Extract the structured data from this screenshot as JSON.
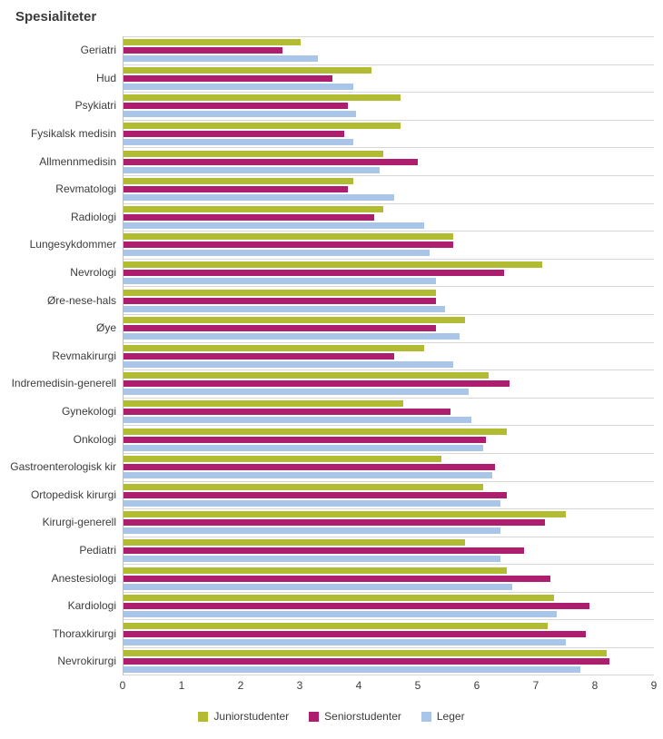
{
  "chart_data": {
    "type": "bar",
    "orientation": "horizontal",
    "title": "Spesialiteter",
    "xlabel": "",
    "ylabel": "",
    "xlim": [
      0,
      9
    ],
    "x_ticks": [
      0,
      1,
      2,
      3,
      4,
      5,
      6,
      7,
      8,
      9
    ],
    "grid": "horizontal-row-separators",
    "legend_position": "bottom",
    "categories": [
      "Geriatri",
      "Hud",
      "Psykiatri",
      "Fysikalsk medisin",
      "Allmennmedisin",
      "Revmatologi",
      "Radiologi",
      "Lungesykdommer",
      "Nevrologi",
      "Øre-nese-hals",
      "Øye",
      "Revmakirurgi",
      "Indremedisin-generell",
      "Gynekologi",
      "Onkologi",
      "Gastroenterologisk kir",
      "Ortopedisk kirurgi",
      "Kirurgi-generell",
      "Pediatri",
      "Anestesiologi",
      "Kardiologi",
      "Thoraxkirurgi",
      "Nevrokirurgi"
    ],
    "series": [
      {
        "name": "Juniorstudenter",
        "color": "#b2bc33",
        "values": [
          3.0,
          4.2,
          4.7,
          4.7,
          4.4,
          3.9,
          4.4,
          5.6,
          7.1,
          5.3,
          5.8,
          5.1,
          6.2,
          4.75,
          6.5,
          5.4,
          6.1,
          7.5,
          5.8,
          6.5,
          7.3,
          7.2,
          8.2
        ]
      },
      {
        "name": "Seniorstudenter",
        "color": "#ad1e6f",
        "values": [
          2.7,
          3.55,
          3.8,
          3.75,
          5.0,
          3.8,
          4.25,
          5.6,
          6.45,
          5.3,
          5.3,
          4.6,
          6.55,
          5.55,
          6.15,
          6.3,
          6.5,
          7.15,
          6.8,
          7.25,
          7.9,
          7.85,
          8.25
        ]
      },
      {
        "name": "Leger",
        "color": "#a9c5e8",
        "values": [
          3.3,
          3.9,
          3.95,
          3.9,
          4.35,
          4.6,
          5.1,
          5.2,
          5.3,
          5.45,
          5.7,
          5.6,
          5.85,
          5.9,
          6.1,
          6.25,
          6.4,
          6.4,
          6.4,
          6.6,
          7.35,
          7.5,
          7.75
        ]
      }
    ]
  }
}
